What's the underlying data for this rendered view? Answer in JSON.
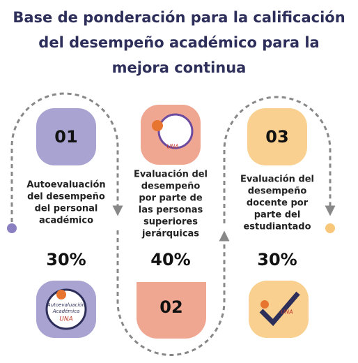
{
  "header": {
    "title": [
      "Base de ponderación para la calificación",
      "del desempeño académico para la",
      "mejora continua"
    ]
  },
  "items": [
    {
      "number": "01",
      "lines": [
        "Autoevaluación",
        "del desempeño",
        "del personal",
        "académico"
      ],
      "percent": "30%",
      "logo": [
        "Autoevaluación",
        "Académica",
        "UNA"
      ]
    },
    {
      "number": "02",
      "lines": [
        "Evaluación del",
        "desempeño",
        "por parte de",
        "las personas",
        "superiores",
        "jerárquicas"
      ],
      "percent": "40%",
      "logo": [
        "UNA"
      ]
    },
    {
      "number": "03",
      "lines": [
        "Evaluación del",
        "desempeño",
        "docente por",
        "parte del",
        "estudiantado"
      ],
      "percent": "30%",
      "logo": [
        "UNA"
      ]
    }
  ]
}
